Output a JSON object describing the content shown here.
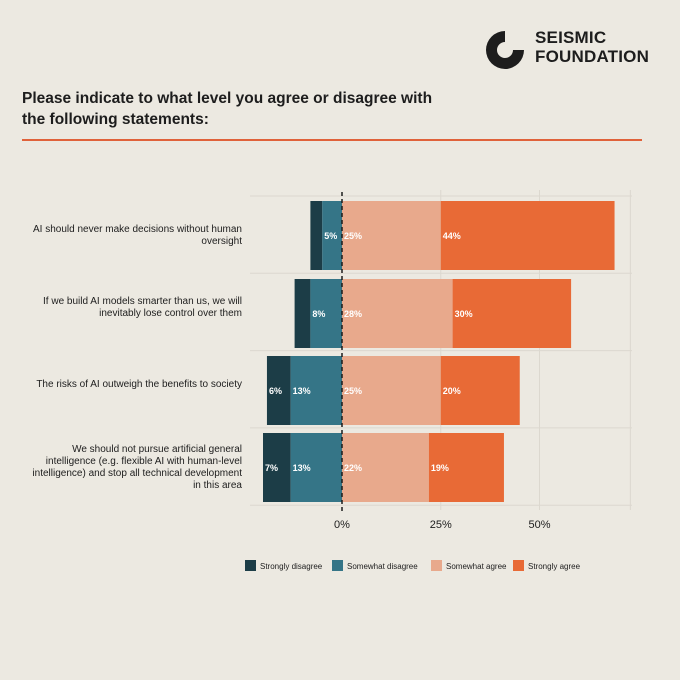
{
  "brand": {
    "line1": "SEISMIC",
    "line2": "FOUNDATION"
  },
  "question": "Please indicate to what level you agree or disagree with the following statements:",
  "colors": {
    "strongly_disagree": "#1c3d47",
    "somewhat_disagree": "#357587",
    "somewhat_agree": "#e8a98c",
    "strongly_agree": "#e86a36",
    "accent": "#e0623a"
  },
  "chart_data": {
    "type": "bar",
    "orientation": "horizontal-diverging",
    "categories": [
      "AI should never make decisions without human oversight",
      "If we build AI models smarter than us, we will inevitably lose control over them",
      "The risks of AI outweigh the benefits to society",
      "We should not pursue artificial general intelligence (e.g. flexible AI with human-level intelligence) and stop all technical development in this area"
    ],
    "series": [
      {
        "name": "Strongly disagree",
        "values": [
          3,
          4,
          6,
          7
        ],
        "labels": [
          "",
          "",
          "6%",
          "7%"
        ]
      },
      {
        "name": "Somewhat disagree",
        "values": [
          5,
          8,
          13,
          13
        ],
        "labels": [
          "5%",
          "8%",
          "13%",
          "13%"
        ]
      },
      {
        "name": "Somewhat agree",
        "values": [
          25,
          28,
          25,
          22
        ],
        "labels": [
          "25%",
          "28%",
          "25%",
          "22%"
        ]
      },
      {
        "name": "Strongly agree",
        "values": [
          44,
          30,
          20,
          19
        ],
        "labels": [
          "44%",
          "30%",
          "20%",
          "19%"
        ]
      }
    ],
    "xticks": [
      "0%",
      "25%",
      "50%"
    ],
    "xtick_values": [
      0,
      25,
      50
    ],
    "xlim": [
      -20,
      73
    ],
    "legend_position": "bottom",
    "zero_line": "dashed"
  }
}
